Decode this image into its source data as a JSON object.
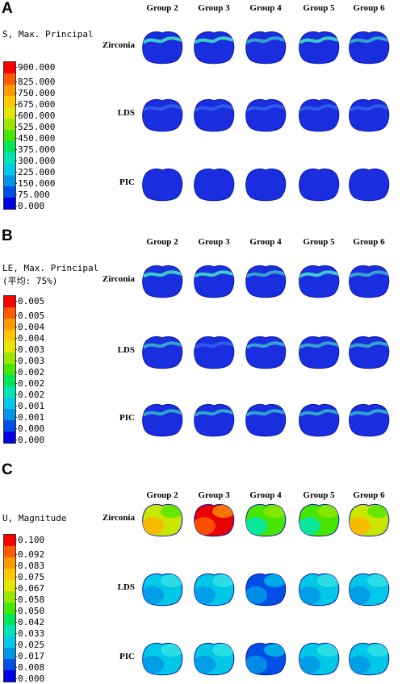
{
  "panels": [
    {
      "letter": "A",
      "legend_title": "S, Max. Principal",
      "legend_subtitle": "",
      "legend_values": [
        "900.000",
        "825.000",
        "750.000",
        "675.000",
        "600.000",
        "525.000",
        "450.000",
        "375.000",
        "300.000",
        "225.000",
        "150.000",
        "75.000",
        "0.000"
      ],
      "groups": [
        "Group 2",
        "Group 3",
        "Group 4",
        "Group 5",
        "Group 6"
      ],
      "materials": [
        "Zirconia",
        "LDS",
        "PIC"
      ],
      "fills": [
        [
          "stress-high",
          "stress-high",
          "stress-mid",
          "stress-high",
          "stress-mid"
        ],
        [
          "stress-low",
          "stress-low",
          "stress-low",
          "stress-low",
          "stress-low"
        ],
        [
          "stress-none",
          "stress-none",
          "stress-none",
          "stress-none",
          "stress-none"
        ]
      ]
    },
    {
      "letter": "B",
      "legend_title": "LE, Max. Principal",
      "legend_subtitle": "(平均: 75%)",
      "legend_values": [
        "0.005",
        "0.005",
        "0.004",
        "0.004",
        "0.003",
        "0.003",
        "0.002",
        "0.002",
        "0.002",
        "0.001",
        "0.001",
        "0.000",
        "0.000"
      ],
      "groups": [
        "Group 2",
        "Group 3",
        "Group 4",
        "Group 5",
        "Group 6"
      ],
      "materials": [
        "Zirconia",
        "LDS",
        "PIC"
      ],
      "fills": [
        [
          "stress-high",
          "stress-high",
          "stress-mid",
          "stress-high",
          "stress-mid"
        ],
        [
          "stress-mid",
          "stress-low",
          "stress-mid",
          "stress-mid",
          "stress-mid"
        ],
        [
          "stress-mid",
          "stress-mid",
          "stress-mid",
          "stress-mid",
          "stress-mid"
        ]
      ]
    },
    {
      "letter": "C",
      "legend_title": "U, Magnitude",
      "legend_subtitle": "",
      "legend_values": [
        "0.100",
        "0.092",
        "0.083",
        "0.075",
        "0.067",
        "0.058",
        "0.050",
        "0.042",
        "0.033",
        "0.025",
        "0.017",
        "0.008",
        "0.000"
      ],
      "groups": [
        "Group 2",
        "Group 3",
        "Group 4",
        "Group 5",
        "Group 6"
      ],
      "materials": [
        "Zirconia",
        "LDS",
        "PIC"
      ],
      "fills": [
        [
          "disp-yellow",
          "disp-red",
          "disp-green",
          "disp-green",
          "disp-yellow"
        ],
        [
          "disp-cyan",
          "disp-cyan",
          "disp-blue",
          "disp-cyan",
          "disp-cyan"
        ],
        [
          "disp-cyan",
          "disp-cyan",
          "disp-blue",
          "disp-cyan",
          "disp-cyan"
        ]
      ]
    }
  ],
  "colors": {
    "legend_scale": [
      "#ff0000",
      "#ff5a00",
      "#ff9a00",
      "#ffc800",
      "#e6e600",
      "#9be600",
      "#46e600",
      "#00e65a",
      "#00e6b4",
      "#00c8e6",
      "#0096e6",
      "#0050e6",
      "#0000e6"
    ],
    "tooth_blue": "#1a2ee0",
    "tooth_edge": "#0a18b0",
    "stress_band": "#3dd6c4"
  }
}
